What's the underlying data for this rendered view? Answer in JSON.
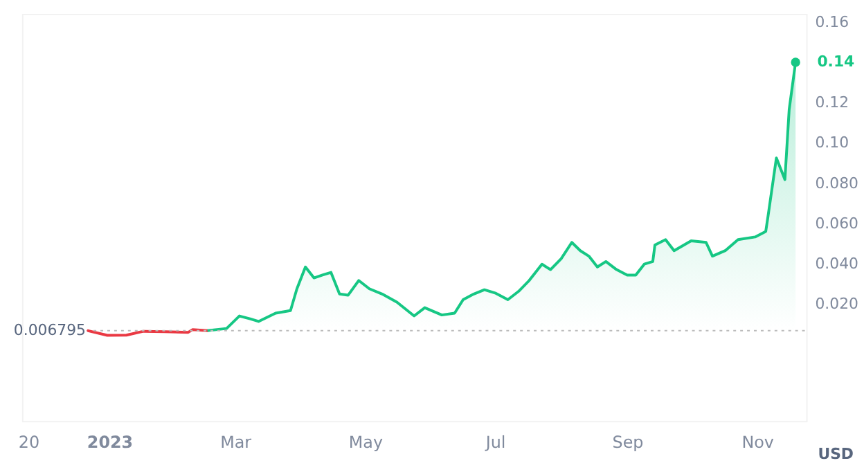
{
  "chart_data": {
    "type": "line",
    "ylabel": "USD",
    "series": [
      {
        "type": "line",
        "color": "#ea3943",
        "x": [
          "2022-12-22",
          "2022-12-31",
          "2023-01-09",
          "2023-01-17",
          "2023-01-27",
          "2023-02-07",
          "2023-02-09",
          "2023-02-16"
        ],
        "values": [
          0.0068,
          0.0045,
          0.0046,
          0.0065,
          0.0063,
          0.006,
          0.0073,
          0.0068
        ]
      },
      {
        "type": "area",
        "color": "#16c784",
        "x": [
          "2023-02-16",
          "2023-02-25",
          "2023-03-03",
          "2023-03-08",
          "2023-03-12",
          "2023-03-20",
          "2023-03-27",
          "2023-03-30",
          "2023-04-03",
          "2023-04-07",
          "2023-04-11",
          "2023-04-15",
          "2023-04-19",
          "2023-04-23",
          "2023-04-28",
          "2023-05-03",
          "2023-05-09",
          "2023-05-16",
          "2023-05-24",
          "2023-05-29",
          "2023-06-06",
          "2023-06-12",
          "2023-06-16",
          "2023-06-21",
          "2023-06-26",
          "2023-07-01",
          "2023-07-07",
          "2023-07-12",
          "2023-07-17",
          "2023-07-23",
          "2023-07-27",
          "2023-08-01",
          "2023-08-06",
          "2023-08-10",
          "2023-08-14",
          "2023-08-18",
          "2023-08-22",
          "2023-08-27",
          "2023-09-01",
          "2023-09-05",
          "2023-09-09",
          "2023-09-13",
          "2023-09-14",
          "2023-09-19",
          "2023-09-23",
          "2023-10-01",
          "2023-10-08",
          "2023-10-11",
          "2023-10-17",
          "2023-10-23",
          "2023-10-31",
          "2023-11-05",
          "2023-11-06",
          "2023-11-10",
          "2023-11-14",
          "2023-11-16",
          "2023-11-19"
        ],
        "values": [
          0.0068,
          0.0079,
          0.0141,
          0.0127,
          0.0114,
          0.0155,
          0.0168,
          0.0276,
          0.0384,
          0.033,
          0.0344,
          0.0357,
          0.025,
          0.0244,
          0.0317,
          0.0276,
          0.025,
          0.0209,
          0.0141,
          0.0182,
          0.0146,
          0.0155,
          0.0222,
          0.025,
          0.0271,
          0.0255,
          0.0222,
          0.0263,
          0.0317,
          0.0398,
          0.0371,
          0.0425,
          0.0506,
          0.0465,
          0.0438,
          0.0384,
          0.0411,
          0.0371,
          0.0344,
          0.0344,
          0.0398,
          0.0411,
          0.0493,
          0.052,
          0.0465,
          0.0514,
          0.0506,
          0.0438,
          0.0465,
          0.052,
          0.0533,
          0.056,
          0.063,
          0.0925,
          0.0818,
          0.1165,
          0.14
        ]
      }
    ],
    "xlim": [
      "2022-11-21",
      "2023-11-24"
    ],
    "xticks": [
      {
        "value": "2022-11-24",
        "label": "20"
      },
      {
        "value": "2023-01-01",
        "label": "2023"
      },
      {
        "value": "2023-03-01",
        "label": "Mar"
      },
      {
        "value": "2023-05-01",
        "label": "May"
      },
      {
        "value": "2023-07-01",
        "label": "Jul"
      },
      {
        "value": "2023-09-01",
        "label": "Sep"
      },
      {
        "value": "2023-11-01",
        "label": "Nov"
      }
    ],
    "ylim": [
      -0.038,
      0.164
    ],
    "yticks": [
      {
        "value": 0.02,
        "label": "0.020"
      },
      {
        "value": 0.04,
        "label": "0.040"
      },
      {
        "value": 0.06,
        "label": "0.060"
      },
      {
        "value": 0.08,
        "label": "0.080"
      },
      {
        "value": 0.1,
        "label": "0.10"
      },
      {
        "value": 0.12,
        "label": "0.12"
      },
      {
        "value": 0.16,
        "label": "0.16"
      }
    ],
    "ref_lines": [
      {
        "axis": "y",
        "value": 0.006795,
        "label": "0.006795",
        "color": "#bbbbbb",
        "line_style": "dotted"
      }
    ],
    "annotations": [
      {
        "text": "0.14",
        "x": "2023-11-19",
        "y": 0.14
      }
    ],
    "tick_labels": true
  }
}
